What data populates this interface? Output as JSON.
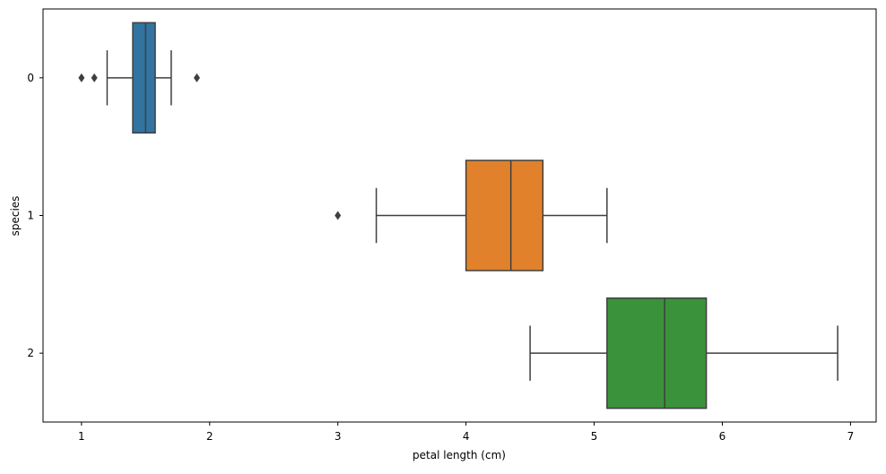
{
  "chart_data": {
    "type": "boxplot",
    "orientation": "horizontal",
    "xlabel": "petal length (cm)",
    "ylabel": "species",
    "xlim": [
      0.7,
      7.2
    ],
    "xticks": [
      1,
      2,
      3,
      4,
      5,
      6,
      7
    ],
    "categories": [
      "0",
      "1",
      "2"
    ],
    "grid": false,
    "boxes": [
      {
        "category": "0",
        "whisker_low": 1.2,
        "q1": 1.4,
        "median": 1.5,
        "q3": 1.575,
        "whisker_high": 1.7,
        "outliers": [
          1.0,
          1.1,
          1.9
        ],
        "color": "#3274a1"
      },
      {
        "category": "1",
        "whisker_low": 3.3,
        "q1": 4.0,
        "median": 4.35,
        "q3": 4.6,
        "whisker_high": 5.1,
        "outliers": [
          3.0
        ],
        "color": "#e1812c"
      },
      {
        "category": "2",
        "whisker_low": 4.5,
        "q1": 5.1,
        "median": 5.55,
        "q3": 5.875,
        "whisker_high": 6.9,
        "outliers": [],
        "color": "#3a923a"
      }
    ]
  }
}
